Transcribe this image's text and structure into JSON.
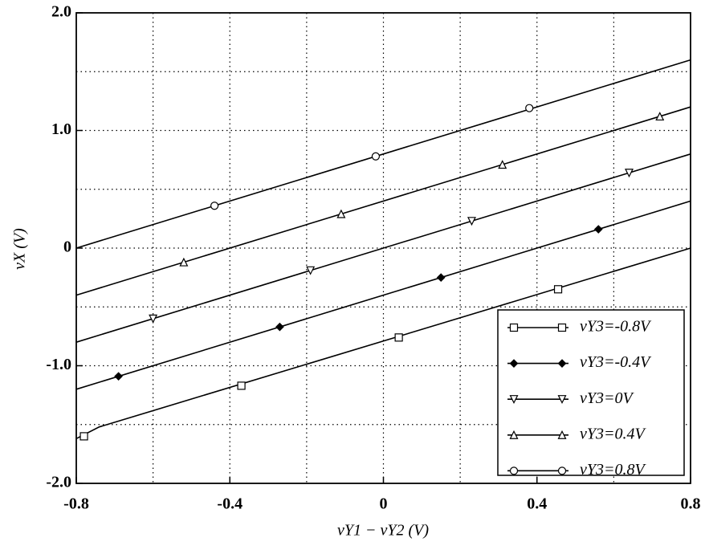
{
  "chart_data": {
    "type": "line",
    "xlabel": "vY1 − vY2 (V)",
    "ylabel": "vX (V)",
    "xlim": [
      -0.8,
      0.8
    ],
    "ylim": [
      -2,
      2
    ],
    "xticks": [
      -0.8,
      -0.4,
      0,
      0.4,
      0.8
    ],
    "xminor": [
      -0.6,
      -0.2,
      0.2,
      0.6
    ],
    "yticks": [
      {
        "value": -2,
        "label": "-2.0"
      },
      {
        "value": -1,
        "label": "-1.0"
      },
      0,
      {
        "value": 1,
        "label": "1.0"
      },
      {
        "value": 2,
        "label": "2.0"
      }
    ],
    "yminor": [
      -1.5,
      -0.5,
      0.5,
      1.5
    ],
    "grid": true,
    "legend": "lower right",
    "series": [
      {
        "name": "vY3=-0.8V",
        "marker": "square",
        "color": "#000",
        "x": [
          -0.8,
          -0.74,
          0.8
        ],
        "values": [
          -1.62,
          -1.52,
          0.0
        ],
        "marker_x": [
          -0.78,
          -0.37,
          0.04,
          0.455
        ],
        "marker_values": [
          -1.6,
          -1.17,
          -0.76,
          -0.35
        ]
      },
      {
        "name": "vY3=-0.4V",
        "marker": "diamond",
        "color": "#000",
        "x": [
          -0.8,
          0.8
        ],
        "values": [
          -1.2,
          0.4
        ],
        "marker_x": [
          -0.69,
          -0.27,
          0.15,
          0.56
        ],
        "marker_values": [
          -1.09,
          -0.67,
          -0.25,
          0.16
        ]
      },
      {
        "name": "vY3=0V",
        "marker": "down",
        "color": "#000",
        "x": [
          -0.8,
          0.8
        ],
        "values": [
          -0.8,
          0.8
        ],
        "marker_x": [
          -0.6,
          -0.19,
          0.23,
          0.64
        ],
        "marker_values": [
          -0.6,
          -0.19,
          0.23,
          0.64
        ]
      },
      {
        "name": "vY3=0.4V",
        "marker": "up",
        "color": "#000",
        "x": [
          -0.8,
          0.8
        ],
        "values": [
          -0.4,
          1.2
        ],
        "marker_x": [
          -0.52,
          -0.11,
          0.31,
          0.72
        ],
        "marker_values": [
          -0.12,
          0.29,
          0.71,
          1.12
        ]
      },
      {
        "name": "vY3=0.8V",
        "marker": "circle",
        "color": "#000",
        "x": [
          -0.8,
          0.8
        ],
        "values": [
          0.0,
          1.6
        ],
        "marker_x": [
          -0.44,
          -0.02,
          0.38
        ],
        "marker_values": [
          0.36,
          0.78,
          1.19
        ]
      }
    ]
  }
}
